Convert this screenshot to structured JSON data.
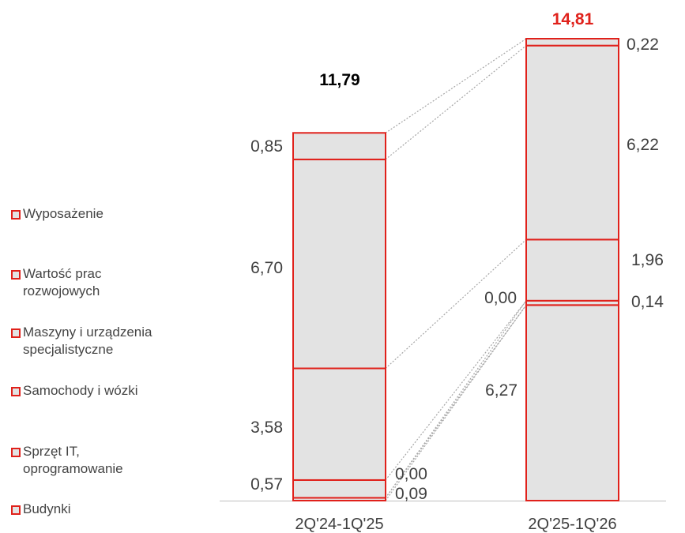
{
  "chart_data": {
    "type": "bar",
    "stacked": true,
    "categories": [
      "2Q'24-1Q'25",
      "2Q'25-1Q'26"
    ],
    "totals": [
      "11,79",
      "14,81"
    ],
    "series": [
      {
        "name": "Budynki",
        "values": [
          0.09,
          6.27
        ],
        "labels": [
          "0,09",
          "6,27"
        ]
      },
      {
        "name": "Sprzęt IT, oprogramowanie",
        "values": [
          0.0,
          0.14
        ],
        "labels": [
          "0,00",
          "0,14"
        ]
      },
      {
        "name": "Samochody i wózki",
        "values": [
          0.57,
          0.0
        ],
        "labels": [
          "0,57",
          "0,00"
        ]
      },
      {
        "name": "Maszyny i urządzenia specjalistyczne",
        "values": [
          3.58,
          1.96
        ],
        "labels": [
          "3,58",
          "1,96"
        ]
      },
      {
        "name": "Wartość prac rozwojowych",
        "values": [
          6.7,
          6.22
        ],
        "labels": [
          "6,70",
          "6,22"
        ]
      },
      {
        "name": "Wyposażenie",
        "values": [
          0.85,
          0.22
        ],
        "labels": [
          "0,85",
          "0,22"
        ]
      }
    ],
    "legend_position": "left",
    "grid": false,
    "colors": {
      "bar_fill": "#e3e3e3",
      "bar_border": "#e0211b",
      "connector": "#a6a6a6",
      "total_first": "#000000",
      "total_second": "#e0211b",
      "label": "#404040"
    }
  },
  "legend": {
    "items": [
      {
        "line1": "Wyposażenie",
        "line2": ""
      },
      {
        "line1": "Wartość prac",
        "line2": "rozwojowych"
      },
      {
        "line1": "Maszyny i urządzenia",
        "line2": "specjalistyczne"
      },
      {
        "line1": "Samochody i wózki",
        "line2": ""
      },
      {
        "line1": "Sprzęt IT,",
        "line2": "oprogramowanie"
      },
      {
        "line1": "Budynki",
        "line2": ""
      }
    ]
  }
}
